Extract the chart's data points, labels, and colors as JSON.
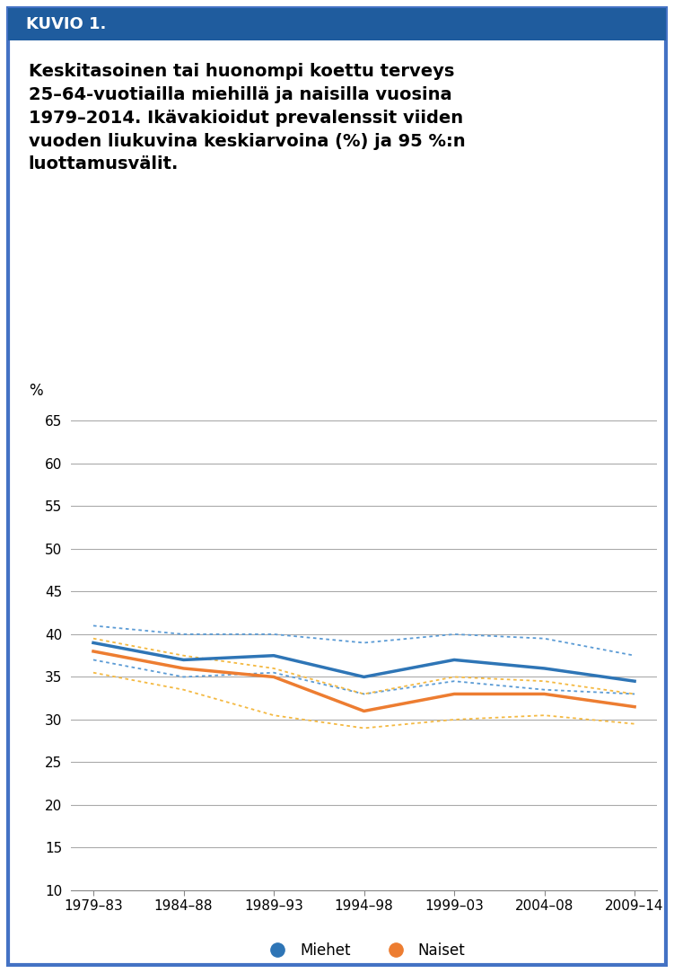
{
  "title": "Keskitasoinen tai huonompi koettu terveys\n25–64-vuotiailla miehillä ja naisilla vuosina\n1979–2014. Ikävakioidut prevalenssit viiden\nvuoden liukuvina keskiarvoina (%) ja 95 %:n\nluottamusvälit.",
  "header_text": "KUVIO 1.",
  "x_labels": [
    "1979–83",
    "1984–88",
    "1989–93",
    "1994–98",
    "1999–03",
    "2004–08",
    "2009–14"
  ],
  "ylabel": "%",
  "ylim": [
    10,
    67
  ],
  "yticks": [
    10,
    15,
    20,
    25,
    30,
    35,
    40,
    45,
    50,
    55,
    60,
    65
  ],
  "men_main": [
    39.0,
    37.0,
    37.5,
    35.0,
    37.0,
    36.0,
    34.5
  ],
  "men_upper": [
    41.0,
    40.0,
    40.0,
    39.0,
    40.0,
    39.5,
    37.5
  ],
  "men_lower": [
    37.0,
    35.0,
    35.5,
    33.0,
    34.5,
    33.5,
    33.0
  ],
  "women_main": [
    38.0,
    36.0,
    35.0,
    31.0,
    33.0,
    33.0,
    31.5
  ],
  "women_upper": [
    39.5,
    37.5,
    36.0,
    33.0,
    35.0,
    34.5,
    33.0
  ],
  "women_lower": [
    35.5,
    33.5,
    30.5,
    29.0,
    30.0,
    30.5,
    29.5
  ],
  "men_color": "#2E75B6",
  "women_color": "#ED7D31",
  "men_ci_color": "#5B9BD5",
  "women_ci_color": "#F4B942",
  "header_bg": "#1F5C9E",
  "outer_border_color": "#4472C4",
  "legend_men": "Miehet",
  "legend_women": "Naiset",
  "title_fontsize": 14,
  "tick_fontsize": 11,
  "ylabel_fontsize": 12,
  "legend_fontsize": 12
}
